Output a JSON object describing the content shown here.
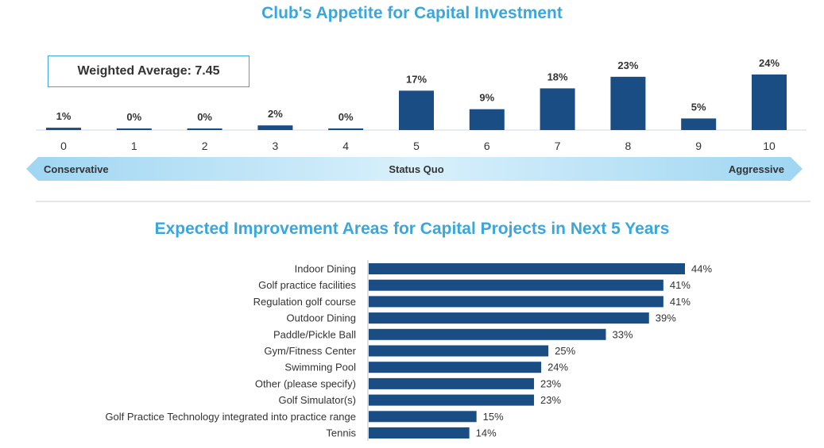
{
  "chart_data": [
    {
      "type": "bar",
      "title": "Club's Appetite for Capital Investment",
      "categories": [
        "0",
        "1",
        "2",
        "3",
        "4",
        "5",
        "6",
        "7",
        "8",
        "9",
        "10"
      ],
      "values": [
        1,
        0,
        0,
        2,
        0,
        17,
        9,
        18,
        23,
        5,
        24
      ],
      "value_labels": [
        "1%",
        "0%",
        "0%",
        "2%",
        "0%",
        "17%",
        "9%",
        "18%",
        "23%",
        "5%",
        "24%"
      ],
      "unit": "%",
      "ylim": [
        0,
        25
      ],
      "callout": "Weighted Average: 7.45",
      "scale_labels": {
        "left": "Conservative",
        "center": "Status Quo",
        "right": "Aggressive"
      },
      "bar_color": "#1a4d84"
    },
    {
      "type": "bar",
      "orientation": "horizontal",
      "title": "Expected Improvement Areas for Capital Projects in Next 5 Years",
      "categories": [
        "Indoor Dining",
        "Golf practice facilities",
        "Regulation golf course",
        "Outdoor Dining",
        "Paddle/Pickle Ball",
        "Gym/Fitness Center",
        "Swimming Pool",
        "Other (please specify)",
        "Golf Simulator(s)",
        "Golf Practice Technology integrated into practice range",
        "Tennis"
      ],
      "values": [
        44,
        41,
        41,
        39,
        33,
        25,
        24,
        23,
        23,
        15,
        14
      ],
      "value_labels": [
        "44%",
        "41%",
        "41%",
        "39%",
        "33%",
        "25%",
        "24%",
        "23%",
        "23%",
        "15%",
        "14%"
      ],
      "unit": "%",
      "xlim": [
        0,
        44
      ],
      "bar_color": "#1a4d84"
    }
  ]
}
